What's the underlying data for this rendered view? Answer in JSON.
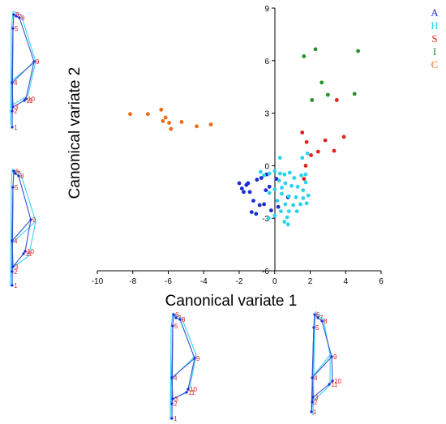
{
  "chart_data": {
    "type": "scatter",
    "xlabel": "Canonical variate 1",
    "ylabel": "Canonical variate 2",
    "xlim": [
      -10,
      6
    ],
    "ylim": [
      -6,
      9
    ],
    "xticks": [
      "-10",
      "-8",
      "-6",
      "-4",
      "-2",
      "0",
      "2",
      "4",
      "6"
    ],
    "yticks": [
      "-6",
      "-3",
      "0",
      "3",
      "6",
      "9"
    ],
    "legend_position": "top-right",
    "series": [
      {
        "name": "A",
        "color": "#1a2bd6",
        "points": [
          [
            -2.0,
            -1.0
          ],
          [
            -1.85,
            -1.3
          ],
          [
            -1.6,
            -1.1
          ],
          [
            -1.4,
            -1.5
          ],
          [
            -1.0,
            -0.8
          ],
          [
            -0.75,
            -0.7
          ],
          [
            -0.45,
            -0.5
          ],
          [
            -0.3,
            -1.2
          ],
          [
            -1.5,
            -1.0
          ],
          [
            -1.2,
            -2.0
          ],
          [
            -0.85,
            -2.25
          ],
          [
            -1.3,
            -2.65
          ],
          [
            -1.05,
            -2.75
          ],
          [
            -0.2,
            -2.55
          ],
          [
            0.2,
            -2.35
          ],
          [
            0.75,
            -1.8
          ],
          [
            -0.5,
            -1.4
          ],
          [
            -1.75,
            -1.5
          ],
          [
            -0.6,
            -2.2
          ],
          [
            0.1,
            -0.75
          ]
        ]
      },
      {
        "name": "H",
        "color": "#2ad2ef",
        "points": [
          [
            -0.8,
            -0.35
          ],
          [
            -0.6,
            -0.55
          ],
          [
            -0.3,
            -0.45
          ],
          [
            0.0,
            -0.3
          ],
          [
            0.3,
            -0.45
          ],
          [
            0.55,
            -0.5
          ],
          [
            0.85,
            -0.4
          ],
          [
            1.1,
            -0.7
          ],
          [
            1.5,
            -0.55
          ],
          [
            1.75,
            -0.5
          ],
          [
            0.3,
            0.45
          ],
          [
            1.55,
            0.45
          ],
          [
            1.85,
            0.7
          ],
          [
            0.25,
            -0.85
          ],
          [
            0.6,
            -1.0
          ],
          [
            0.95,
            -1.15
          ],
          [
            1.3,
            -1.2
          ],
          [
            0.0,
            -1.35
          ],
          [
            -0.3,
            -1.55
          ],
          [
            0.4,
            -1.6
          ],
          [
            0.8,
            -1.75
          ],
          [
            1.2,
            -1.8
          ],
          [
            1.6,
            -1.85
          ],
          [
            1.9,
            -1.7
          ],
          [
            0.15,
            -2.0
          ],
          [
            0.6,
            -2.2
          ],
          [
            1.05,
            -2.25
          ],
          [
            1.45,
            -2.2
          ],
          [
            1.8,
            -2.15
          ],
          [
            0.35,
            -2.6
          ],
          [
            0.8,
            -2.6
          ],
          [
            1.25,
            -2.6
          ],
          [
            0.7,
            -2.95
          ],
          [
            0.55,
            -3.2
          ],
          [
            0.75,
            -3.35
          ],
          [
            -0.35,
            -3.0
          ],
          [
            0.0,
            -2.85
          ],
          [
            1.75,
            -0.95
          ],
          [
            1.6,
            -1.4
          ],
          [
            0.4,
            -1.25
          ]
        ]
      },
      {
        "name": "S",
        "color": "#e0201b",
        "points": [
          [
            1.55,
            1.9
          ],
          [
            1.8,
            1.35
          ],
          [
            2.45,
            0.8
          ],
          [
            2.85,
            1.45
          ],
          [
            3.35,
            0.85
          ],
          [
            3.9,
            1.65
          ],
          [
            1.65,
            -0.75
          ],
          [
            2.05,
            0.6
          ],
          [
            3.5,
            3.75
          ],
          [
            1.75,
            0.0
          ]
        ]
      },
      {
        "name": "I",
        "color": "#23922a",
        "points": [
          [
            1.65,
            6.25
          ],
          [
            2.3,
            6.65
          ],
          [
            2.65,
            4.75
          ],
          [
            3.0,
            4.05
          ],
          [
            4.5,
            4.1
          ],
          [
            4.7,
            6.55
          ],
          [
            2.1,
            3.75
          ]
        ]
      },
      {
        "name": "C",
        "color": "#ed6c15",
        "points": [
          [
            -8.15,
            2.95
          ],
          [
            -7.15,
            2.95
          ],
          [
            -6.4,
            3.2
          ],
          [
            -6.15,
            2.75
          ],
          [
            -6.3,
            2.55
          ],
          [
            -5.95,
            2.45
          ],
          [
            -5.85,
            2.1
          ],
          [
            -5.25,
            2.5
          ],
          [
            -4.4,
            2.25
          ],
          [
            -3.6,
            2.35
          ]
        ]
      }
    ]
  },
  "landmark_labels": [
    "1",
    "2",
    "3",
    "4",
    "5",
    "6",
    "7",
    "8",
    "9",
    "10",
    "11"
  ]
}
